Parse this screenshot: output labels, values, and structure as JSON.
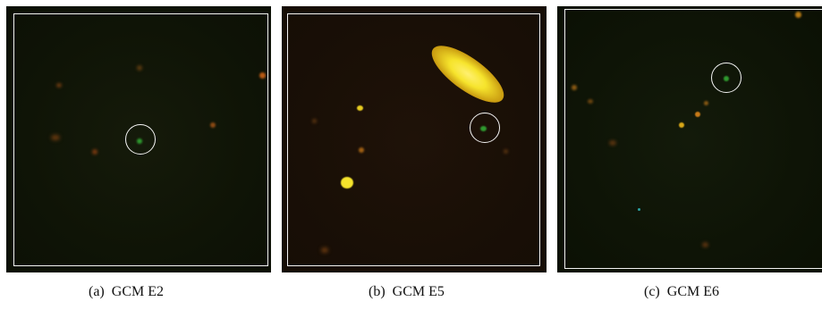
{
  "panels": [
    {
      "id": "a",
      "caption_tag": "(a)",
      "caption_name": "GCM E2"
    },
    {
      "id": "b",
      "caption_tag": "(b)",
      "caption_name": "GCM E5"
    },
    {
      "id": "c",
      "caption_tag": "(c)",
      "caption_name": "GCM E6"
    }
  ],
  "colors": {
    "frame": "#f2f2f2",
    "target_source": "#2f9a2f",
    "star_orange": "#c86a1a",
    "star_yellow": "#f6e42c",
    "background": "#0f1406"
  },
  "icons": [
    "target-circle",
    "galaxy-ellipse"
  ]
}
